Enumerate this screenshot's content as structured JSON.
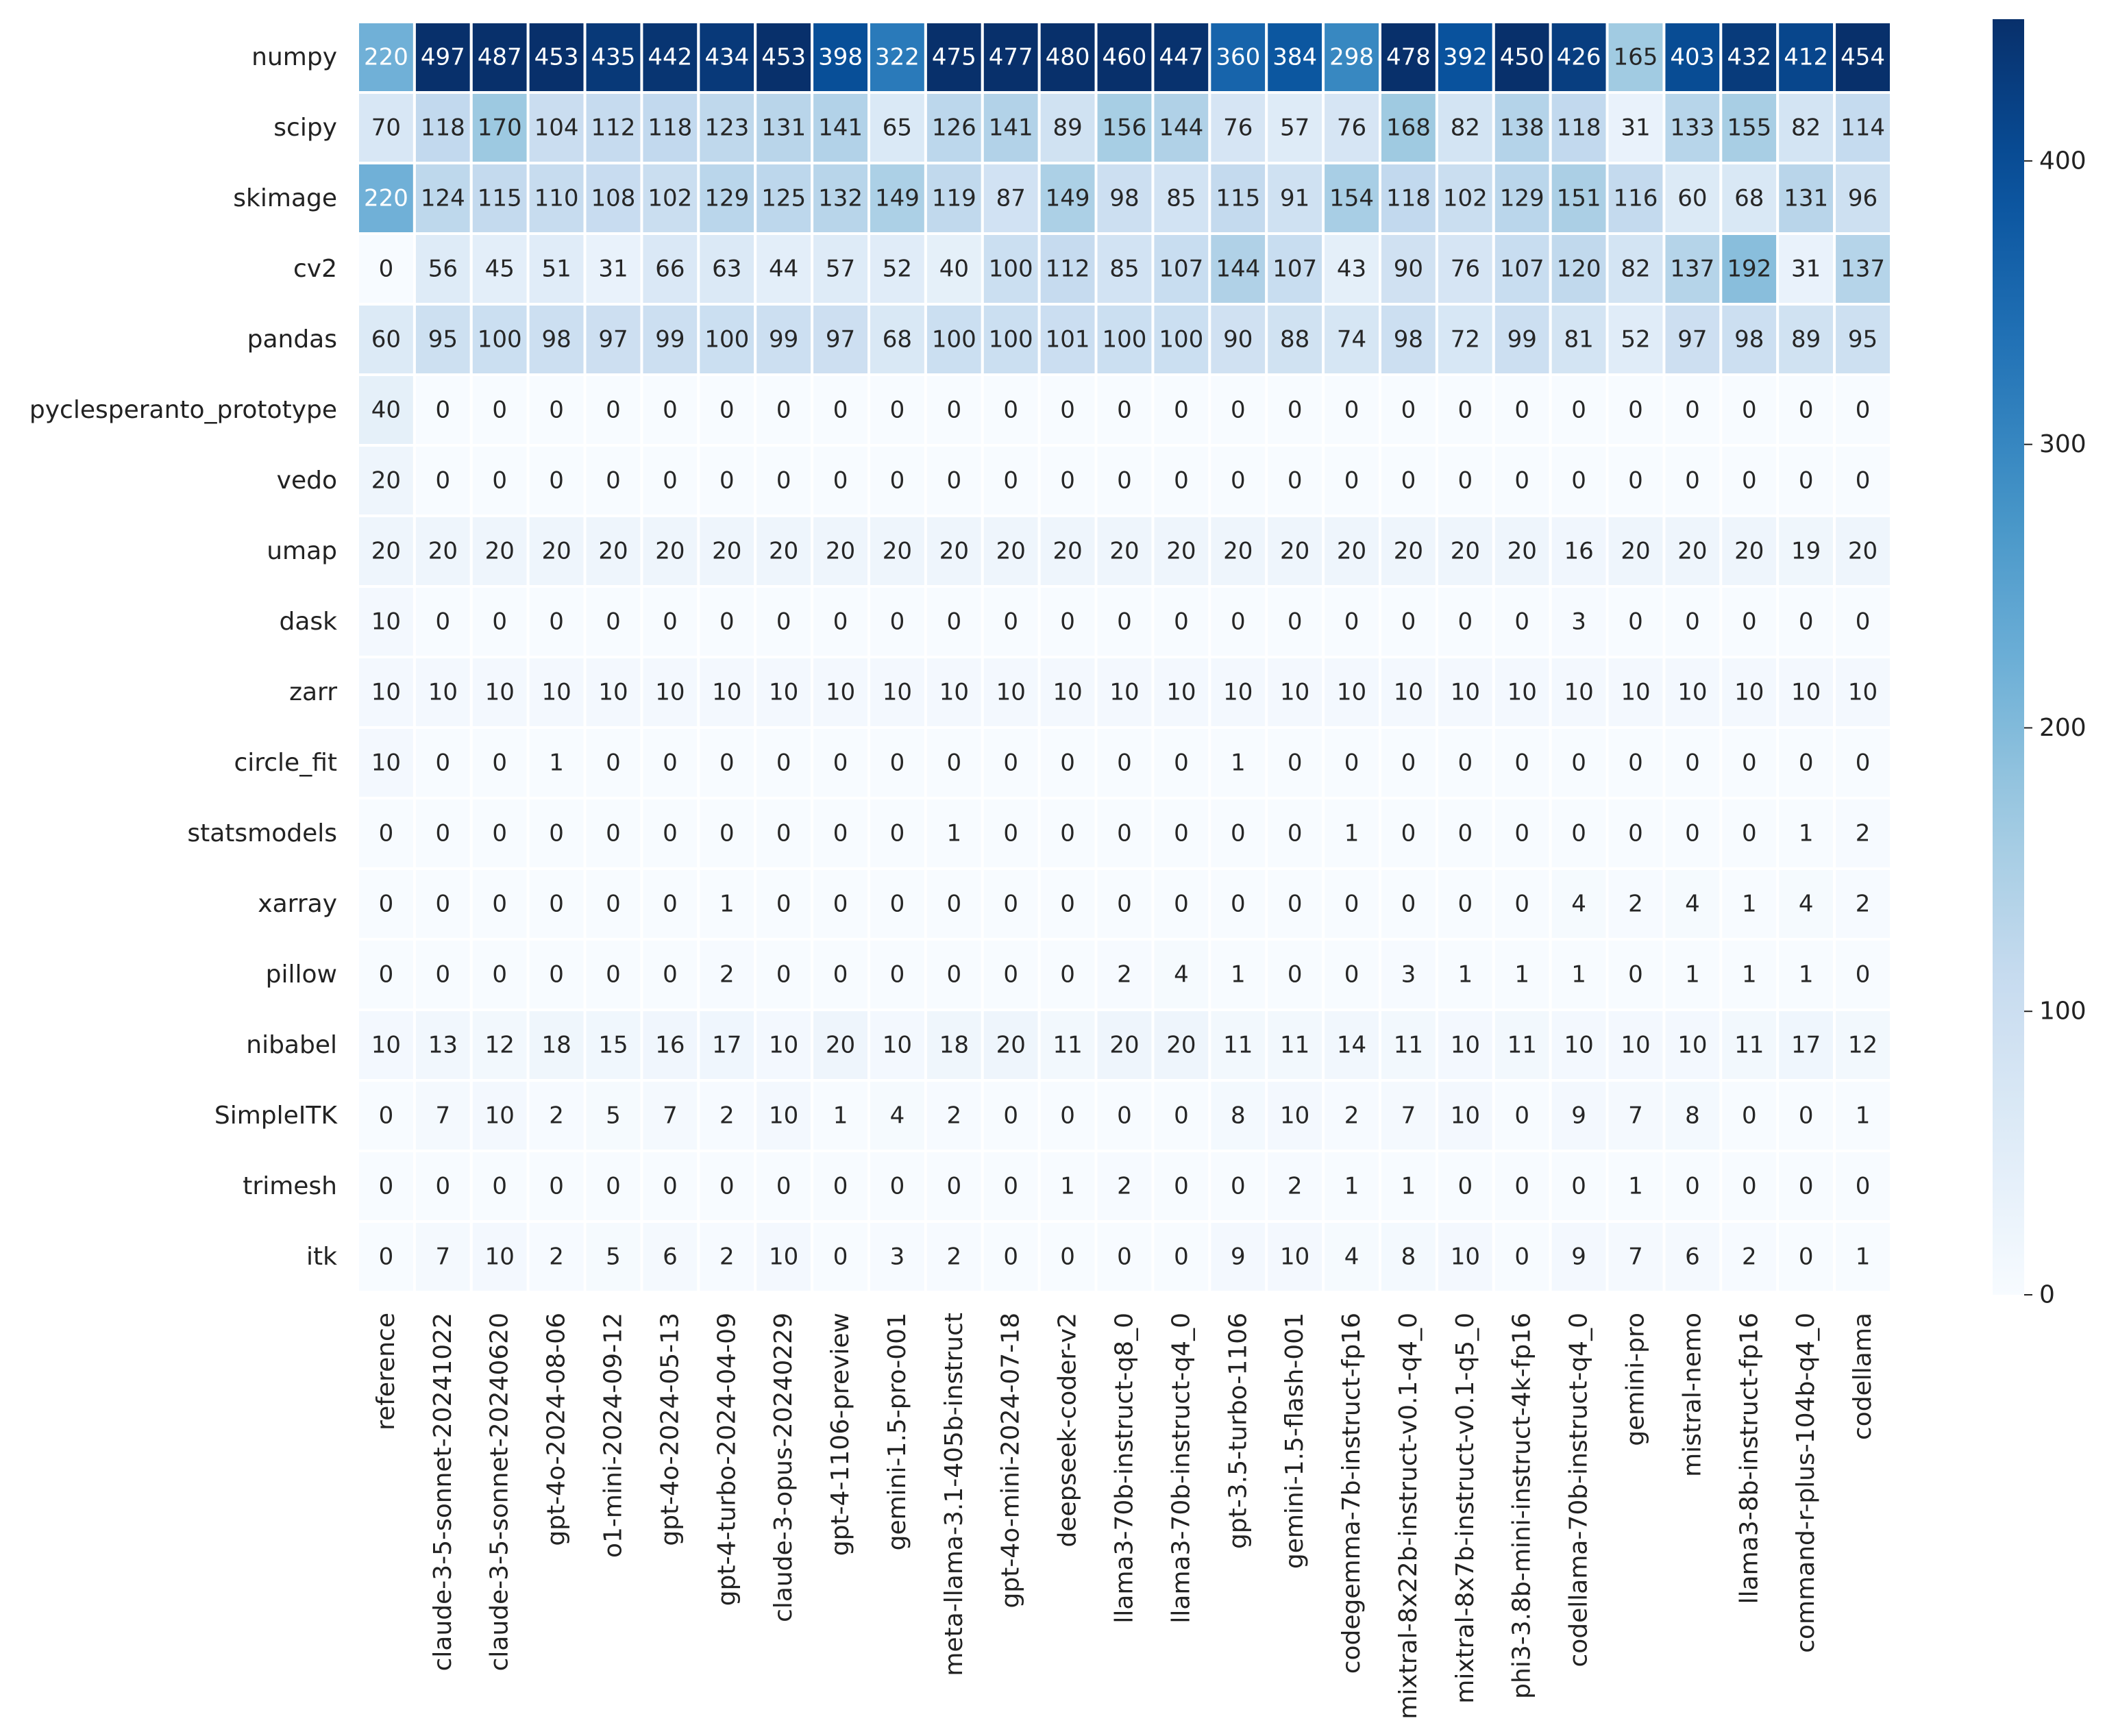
{
  "chart_data": {
    "type": "heatmap",
    "title": "",
    "xlabel": "",
    "ylabel": "",
    "colormap": "Blues",
    "vmin": 0,
    "vmax": 450,
    "colorbar_ticks": [
      0,
      100,
      200,
      300,
      400
    ],
    "colorbar_tick_labels": [
      "0",
      "100",
      "200",
      "300",
      "400"
    ],
    "rows": [
      "numpy",
      "scipy",
      "skimage",
      "cv2",
      "pandas",
      "pyclesperanto_prototype",
      "vedo",
      "umap",
      "dask",
      "zarr",
      "circle_fit",
      "statsmodels",
      "xarray",
      "pillow",
      "nibabel",
      "SimpleITK",
      "trimesh",
      "itk"
    ],
    "columns": [
      "reference",
      "claude-3-5-sonnet-20241022",
      "claude-3-5-sonnet-20240620",
      "gpt-4o-2024-08-06",
      "o1-mini-2024-09-12",
      "gpt-4o-2024-05-13",
      "gpt-4-turbo-2024-04-09",
      "claude-3-opus-20240229",
      "gpt-4-1106-preview",
      "gemini-1.5-pro-001",
      "meta-llama-3.1-405b-instruct",
      "gpt-4o-mini-2024-07-18",
      "deepseek-coder-v2",
      "llama3-70b-instruct-q8_0",
      "llama3-70b-instruct-q4_0",
      "gpt-3.5-turbo-1106",
      "gemini-1.5-flash-001",
      "codegemma-7b-instruct-fp16",
      "mixtral-8x22b-instruct-v0.1-q4_0",
      "mixtral-8x7b-instruct-v0.1-q5_0",
      "phi3-3.8b-mini-instruct-4k-fp16",
      "codellama-70b-instruct-q4_0",
      "gemini-pro",
      "mistral-nemo",
      "llama3-8b-instruct-fp16",
      "command-r-plus-104b-q4_0",
      "codellama"
    ],
    "values": [
      [
        220,
        497,
        487,
        453,
        435,
        442,
        434,
        453,
        398,
        322,
        475,
        477,
        480,
        460,
        447,
        360,
        384,
        298,
        478,
        392,
        450,
        426,
        165,
        403,
        432,
        412,
        454
      ],
      [
        70,
        118,
        170,
        104,
        112,
        118,
        123,
        131,
        141,
        65,
        126,
        141,
        89,
        156,
        144,
        76,
        57,
        76,
        168,
        82,
        138,
        118,
        31,
        133,
        155,
        82,
        114
      ],
      [
        220,
        124,
        115,
        110,
        108,
        102,
        129,
        125,
        132,
        149,
        119,
        87,
        149,
        98,
        85,
        115,
        91,
        154,
        118,
        102,
        129,
        151,
        116,
        60,
        68,
        131,
        96
      ],
      [
        0,
        56,
        45,
        51,
        31,
        66,
        63,
        44,
        57,
        52,
        40,
        100,
        112,
        85,
        107,
        144,
        107,
        43,
        90,
        76,
        107,
        120,
        82,
        137,
        192,
        31,
        137
      ],
      [
        60,
        95,
        100,
        98,
        97,
        99,
        100,
        99,
        97,
        68,
        100,
        100,
        101,
        100,
        100,
        90,
        88,
        74,
        98,
        72,
        99,
        81,
        52,
        97,
        98,
        89,
        95
      ],
      [
        40,
        0,
        0,
        0,
        0,
        0,
        0,
        0,
        0,
        0,
        0,
        0,
        0,
        0,
        0,
        0,
        0,
        0,
        0,
        0,
        0,
        0,
        0,
        0,
        0,
        0,
        0
      ],
      [
        20,
        0,
        0,
        0,
        0,
        0,
        0,
        0,
        0,
        0,
        0,
        0,
        0,
        0,
        0,
        0,
        0,
        0,
        0,
        0,
        0,
        0,
        0,
        0,
        0,
        0,
        0
      ],
      [
        20,
        20,
        20,
        20,
        20,
        20,
        20,
        20,
        20,
        20,
        20,
        20,
        20,
        20,
        20,
        20,
        20,
        20,
        20,
        20,
        20,
        16,
        20,
        20,
        20,
        19,
        20
      ],
      [
        10,
        0,
        0,
        0,
        0,
        0,
        0,
        0,
        0,
        0,
        0,
        0,
        0,
        0,
        0,
        0,
        0,
        0,
        0,
        0,
        0,
        3,
        0,
        0,
        0,
        0,
        0
      ],
      [
        10,
        10,
        10,
        10,
        10,
        10,
        10,
        10,
        10,
        10,
        10,
        10,
        10,
        10,
        10,
        10,
        10,
        10,
        10,
        10,
        10,
        10,
        10,
        10,
        10,
        10,
        10
      ],
      [
        10,
        0,
        0,
        1,
        0,
        0,
        0,
        0,
        0,
        0,
        0,
        0,
        0,
        0,
        0,
        1,
        0,
        0,
        0,
        0,
        0,
        0,
        0,
        0,
        0,
        0,
        0
      ],
      [
        0,
        0,
        0,
        0,
        0,
        0,
        0,
        0,
        0,
        0,
        1,
        0,
        0,
        0,
        0,
        0,
        0,
        1,
        0,
        0,
        0,
        0,
        0,
        0,
        0,
        1,
        2
      ],
      [
        0,
        0,
        0,
        0,
        0,
        0,
        1,
        0,
        0,
        0,
        0,
        0,
        0,
        0,
        0,
        0,
        0,
        0,
        0,
        0,
        0,
        4,
        2,
        4,
        1,
        4,
        2
      ],
      [
        0,
        0,
        0,
        0,
        0,
        0,
        2,
        0,
        0,
        0,
        0,
        0,
        0,
        2,
        4,
        1,
        0,
        0,
        3,
        1,
        1,
        1,
        0,
        1,
        1,
        1,
        0
      ],
      [
        10,
        13,
        12,
        18,
        15,
        16,
        17,
        10,
        20,
        10,
        18,
        20,
        11,
        20,
        20,
        11,
        11,
        14,
        11,
        10,
        11,
        10,
        10,
        10,
        11,
        17,
        12
      ],
      [
        0,
        7,
        10,
        2,
        5,
        7,
        2,
        10,
        1,
        4,
        2,
        0,
        0,
        0,
        0,
        8,
        10,
        2,
        7,
        10,
        0,
        9,
        7,
        8,
        0,
        0,
        1
      ],
      [
        0,
        0,
        0,
        0,
        0,
        0,
        0,
        0,
        0,
        0,
        0,
        0,
        1,
        2,
        0,
        0,
        2,
        1,
        1,
        0,
        0,
        0,
        1,
        0,
        0,
        0,
        0
      ],
      [
        0,
        7,
        10,
        2,
        5,
        6,
        2,
        10,
        0,
        3,
        2,
        0,
        0,
        0,
        0,
        9,
        10,
        4,
        8,
        10,
        0,
        9,
        7,
        6,
        2,
        0,
        1
      ]
    ]
  }
}
